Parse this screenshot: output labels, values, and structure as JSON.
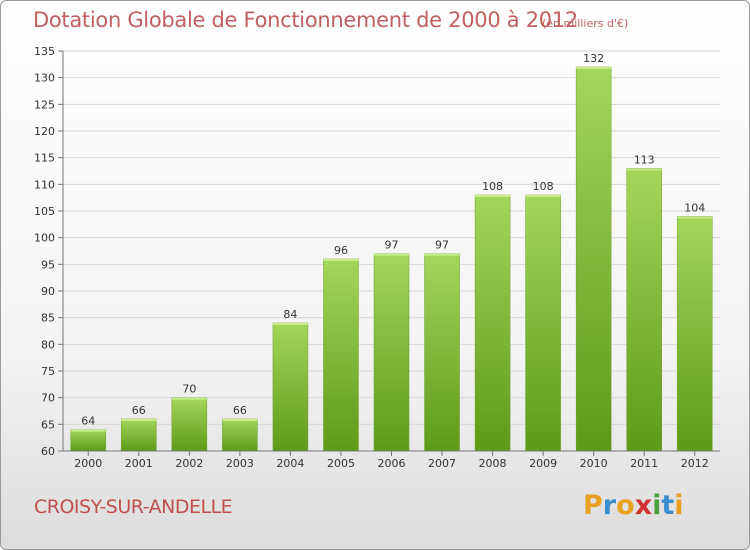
{
  "title": "Dotation Globale de Fonctionnement de 2000 à 2012",
  "unit": "(en milliers d'€)",
  "commune": "CROISY-SUR-ANDELLE",
  "logo": {
    "text": "Proxiti",
    "colors": [
      "#e8a020",
      "#3a8fd0",
      "#e8a020",
      "#d03030",
      "#4aa040",
      "#3a8fd0",
      "#e8a020"
    ]
  },
  "colors": {
    "bar_top": "#a4d65a",
    "bar_bottom": "#5e9a18",
    "grid": "#d8d8d8",
    "axis": "#777777",
    "text": "#333333",
    "title": "#c06060"
  },
  "chart_data": {
    "type": "bar",
    "categories": [
      "2000",
      "2001",
      "2002",
      "2003",
      "2004",
      "2005",
      "2006",
      "2007",
      "2008",
      "2009",
      "2010",
      "2011",
      "2012"
    ],
    "values": [
      64,
      66,
      70,
      66,
      84,
      96,
      97,
      97,
      108,
      108,
      132,
      113,
      104
    ],
    "ylim": [
      60,
      135
    ],
    "yticks": [
      60,
      65,
      70,
      75,
      80,
      85,
      90,
      95,
      100,
      105,
      110,
      115,
      120,
      125,
      130,
      135
    ],
    "grid": true,
    "data_labels": true
  }
}
